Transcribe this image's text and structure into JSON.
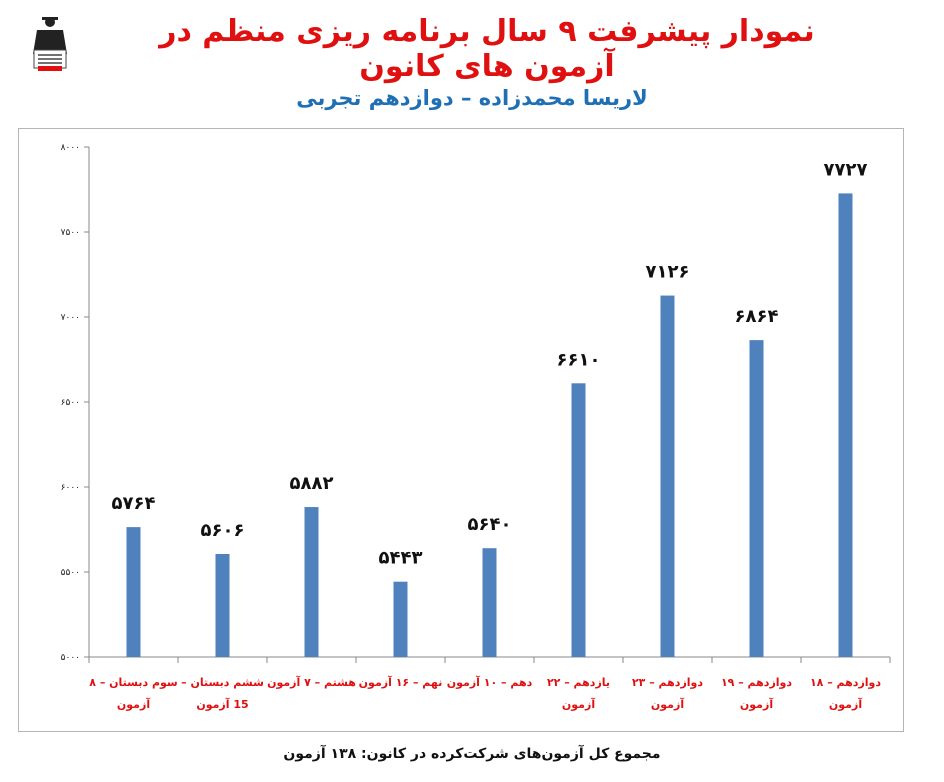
{
  "header": {
    "title": "نمودار پیشرفت ۹ سال برنامه ریزی منظم در آزمون های کانون",
    "subtitle": "لاریسا محمدزاده – دوازدهم تجربی"
  },
  "footer": {
    "text": "مجموع کل آزمون‌های شرکت‌کرده در کانون: ۱۳۸ آزمون"
  },
  "logo": {
    "icon": "graduate-logo-icon",
    "lines": [
      "کانون",
      "فرهنگی",
      "آموزش",
      "قلم‌چی"
    ]
  },
  "colors": {
    "bar": "#4f81bd",
    "title": "#e01010",
    "subtitle": "#1f6fb5",
    "category_labels": "#e01010"
  },
  "chart_data": {
    "type": "bar",
    "categories": [
      [
        "سوم دبستان – ۸",
        "آزمون"
      ],
      [
        "ششم دبستان –",
        "15 آزمون"
      ],
      [
        "هشتم – ۷ آزمون",
        ""
      ],
      [
        "نهم – ۱۶ آزمون",
        ""
      ],
      [
        "دهم – ۱۰ آزمون",
        ""
      ],
      [
        "یازدهم – ۲۲",
        "آزمون"
      ],
      [
        "دوازدهم – ۲۳",
        "آزمون"
      ],
      [
        "دوازدهم – ۱۹",
        "آزمون"
      ],
      [
        "دوازدهم – ۱۸",
        "آزمون"
      ]
    ],
    "values": [
      5764,
      5606,
      5882,
      5443,
      5640,
      6610,
      7126,
      6864,
      7727
    ],
    "value_labels": [
      "۵۷۶۴",
      "۵۶۰۶",
      "۵۸۸۲",
      "۵۴۴۳",
      "۵۶۴۰",
      "۶۶۱۰",
      "۷۱۲۶",
      "۶۸۶۴",
      "۷۷۲۷"
    ],
    "yticks": [
      5000,
      5500,
      6000,
      6500,
      7000,
      7500,
      8000
    ],
    "ytick_labels": [
      "۵۰۰۰",
      "۵۵۰۰",
      "۶۰۰۰",
      "۶۵۰۰",
      "۷۰۰۰",
      "۷۵۰۰",
      "۸۰۰۰"
    ],
    "ylim": [
      5000,
      8000
    ],
    "grid": false,
    "legend": "none"
  }
}
